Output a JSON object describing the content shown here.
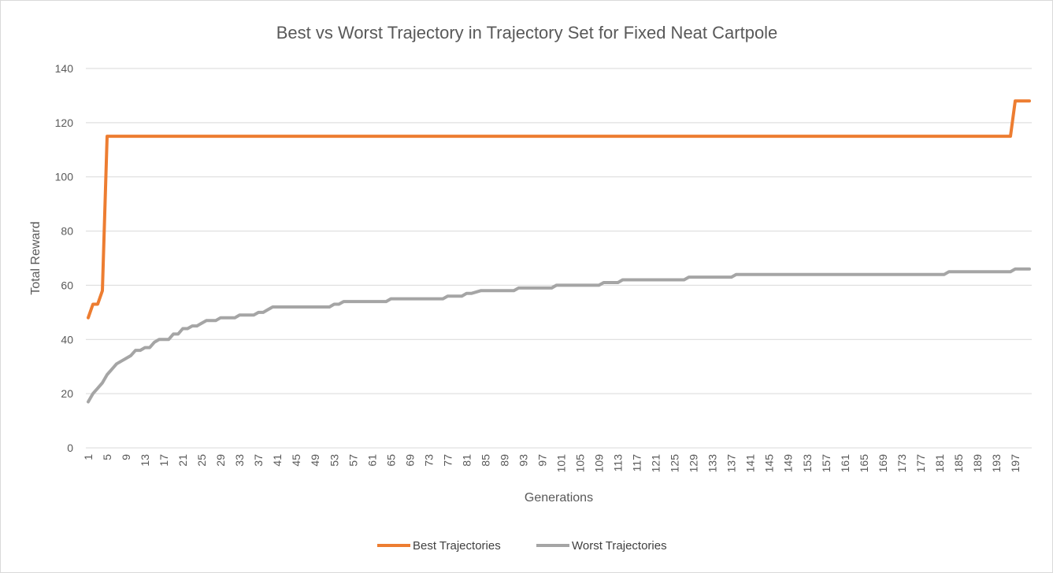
{
  "chart_data": {
    "type": "line",
    "title": "Best vs Worst Trajectory in Trajectory Set for Fixed Neat Cartpole",
    "xlabel": "Generations",
    "ylabel": "Total Reward",
    "ylim": [
      0,
      140
    ],
    "yticks": [
      0,
      20,
      40,
      60,
      80,
      100,
      120,
      140
    ],
    "x_range": [
      1,
      200
    ],
    "x_tick_step": 4,
    "grid": "horizontal",
    "legend_position": "bottom",
    "series": [
      {
        "name": "Best Trajectories",
        "color": "#ed7d31",
        "points": [
          [
            1,
            48
          ],
          [
            2,
            53
          ],
          [
            3,
            53
          ],
          [
            4,
            58
          ],
          [
            5,
            115
          ],
          [
            196,
            115
          ],
          [
            197,
            128
          ],
          [
            200,
            128
          ]
        ]
      },
      {
        "name": "Worst Trajectories",
        "color": "#a5a5a5",
        "points": [
          [
            1,
            17
          ],
          [
            2,
            20
          ],
          [
            3,
            22
          ],
          [
            4,
            24
          ],
          [
            5,
            27
          ],
          [
            6,
            29
          ],
          [
            7,
            31
          ],
          [
            8,
            32
          ],
          [
            9,
            33
          ],
          [
            10,
            34
          ],
          [
            11,
            36
          ],
          [
            12,
            36
          ],
          [
            13,
            37
          ],
          [
            14,
            37
          ],
          [
            15,
            39
          ],
          [
            16,
            40
          ],
          [
            18,
            40
          ],
          [
            19,
            42
          ],
          [
            20,
            42
          ],
          [
            21,
            44
          ],
          [
            22,
            44
          ],
          [
            23,
            45
          ],
          [
            24,
            45
          ],
          [
            25,
            46
          ],
          [
            26,
            47
          ],
          [
            28,
            47
          ],
          [
            29,
            48
          ],
          [
            32,
            48
          ],
          [
            33,
            49
          ],
          [
            36,
            49
          ],
          [
            37,
            50
          ],
          [
            38,
            50
          ],
          [
            39,
            51
          ],
          [
            40,
            52
          ],
          [
            52,
            52
          ],
          [
            53,
            53
          ],
          [
            54,
            53
          ],
          [
            55,
            54
          ],
          [
            64,
            54
          ],
          [
            65,
            55
          ],
          [
            76,
            55
          ],
          [
            77,
            56
          ],
          [
            80,
            56
          ],
          [
            81,
            57
          ],
          [
            82,
            57
          ],
          [
            84,
            58
          ],
          [
            91,
            58
          ],
          [
            92,
            59
          ],
          [
            99,
            59
          ],
          [
            100,
            60
          ],
          [
            109,
            60
          ],
          [
            110,
            61
          ],
          [
            113,
            61
          ],
          [
            114,
            62
          ],
          [
            127,
            62
          ],
          [
            128,
            63
          ],
          [
            137,
            63
          ],
          [
            138,
            64
          ],
          [
            182,
            64
          ],
          [
            183,
            65
          ],
          [
            196,
            65
          ],
          [
            197,
            66
          ],
          [
            200,
            66
          ]
        ]
      }
    ]
  }
}
